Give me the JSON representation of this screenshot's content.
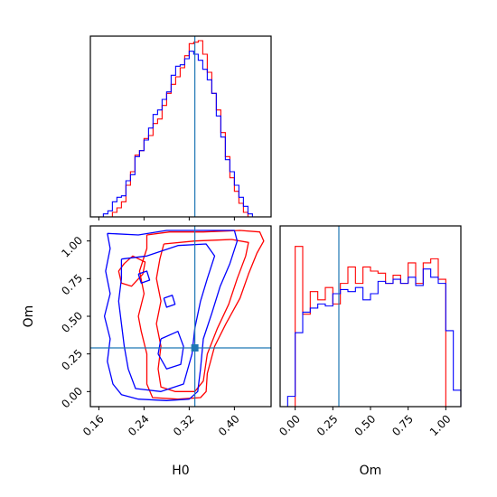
{
  "chart_data": [
    {
      "type": "histogram",
      "panel": "marginal H0",
      "xlim": [
        0.145,
        0.465
      ],
      "ticks": [
        0.16,
        0.24,
        0.32,
        0.4
      ],
      "truth_line": 0.33,
      "bin_edges": [
        0.16,
        0.168,
        0.176,
        0.184,
        0.192,
        0.2,
        0.208,
        0.216,
        0.224,
        0.232,
        0.24,
        0.248,
        0.256,
        0.264,
        0.272,
        0.28,
        0.288,
        0.296,
        0.304,
        0.312,
        0.32,
        0.328,
        0.336,
        0.344,
        0.352,
        0.36,
        0.368,
        0.376,
        0.384,
        0.392,
        0.4,
        0.408,
        0.416,
        0.424,
        0.432,
        0.44
      ],
      "series": [
        {
          "color": "#ff0000",
          "values": [
            0,
            0,
            0,
            3,
            6,
            10,
            21,
            30,
            41,
            44,
            52,
            54,
            62,
            65,
            74,
            82,
            88,
            93,
            99,
            107,
            115,
            116,
            117,
            108,
            96,
            82,
            71,
            56,
            40,
            26,
            17,
            9,
            3,
            0,
            0
          ]
        },
        {
          "color": "#0000ff",
          "values": [
            0,
            2,
            4,
            10,
            13,
            14,
            24,
            28,
            40,
            44,
            51,
            59,
            68,
            71,
            78,
            83,
            94,
            100,
            101,
            105,
            110,
            108,
            104,
            98,
            91,
            82,
            67,
            53,
            38,
            30,
            21,
            13,
            7,
            2,
            0
          ]
        }
      ]
    },
    {
      "type": "contour",
      "panel": "H0 vs Om",
      "xlabel": "H0",
      "ylabel": "Om",
      "xlim": [
        0.145,
        0.465
      ],
      "ylim": [
        -0.1,
        1.1
      ],
      "xticks": [
        0.16,
        0.24,
        0.32,
        0.4
      ],
      "xtick_labels": [
        "0.16",
        "0.24",
        "0.32",
        "0.40"
      ],
      "yticks": [
        0.0,
        0.25,
        0.5,
        0.75,
        1.0
      ],
      "ytick_labels": [
        "0.00",
        "0.25",
        "0.50",
        "0.75",
        "1.00"
      ],
      "truth": {
        "H0": 0.33,
        "Om": 0.29
      },
      "series": [
        {
          "color": "#ff0000",
          "contours": [
            [
              [
                0.245,
                1.04
              ],
              [
                0.285,
                1.06
              ],
              [
                0.345,
                1.06
              ],
              [
                0.41,
                1.07
              ],
              [
                0.445,
                1.06
              ],
              [
                0.452,
                1.0
              ],
              [
                0.44,
                0.92
              ],
              [
                0.425,
                0.78
              ],
              [
                0.41,
                0.62
              ],
              [
                0.385,
                0.45
              ],
              [
                0.365,
                0.3
              ],
              [
                0.352,
                0.12
              ],
              [
                0.35,
                0.0
              ],
              [
                0.34,
                -0.04
              ],
              [
                0.3,
                -0.05
              ],
              [
                0.255,
                -0.04
              ],
              [
                0.245,
                0.05
              ],
              [
                0.245,
                0.25
              ],
              [
                0.235,
                0.4
              ],
              [
                0.23,
                0.5
              ],
              [
                0.24,
                0.65
              ],
              [
                0.232,
                0.8
              ],
              [
                0.245,
                0.95
              ],
              [
                0.245,
                1.04
              ]
            ],
            [
              [
                0.275,
                0.98
              ],
              [
                0.33,
                1.0
              ],
              [
                0.395,
                1.01
              ],
              [
                0.425,
                0.99
              ],
              [
                0.42,
                0.9
              ],
              [
                0.405,
                0.75
              ],
              [
                0.39,
                0.58
              ],
              [
                0.37,
                0.42
              ],
              [
                0.352,
                0.25
              ],
              [
                0.345,
                0.07
              ],
              [
                0.33,
                0.0
              ],
              [
                0.295,
                0.0
              ],
              [
                0.27,
                0.03
              ],
              [
                0.265,
                0.15
              ],
              [
                0.27,
                0.3
              ],
              [
                0.262,
                0.45
              ],
              [
                0.27,
                0.6
              ],
              [
                0.262,
                0.75
              ],
              [
                0.268,
                0.88
              ],
              [
                0.275,
                0.98
              ]
            ],
            [
              [
                0.205,
                0.85
              ],
              [
                0.22,
                0.9
              ],
              [
                0.242,
                0.86
              ],
              [
                0.238,
                0.78
              ],
              [
                0.218,
                0.7
              ],
              [
                0.2,
                0.72
              ],
              [
                0.195,
                0.8
              ],
              [
                0.205,
                0.85
              ]
            ]
          ]
        },
        {
          "color": "#0000ff",
          "contours": [
            [
              [
                0.175,
                1.05
              ],
              [
                0.23,
                1.04
              ],
              [
                0.28,
                1.07
              ],
              [
                0.35,
                1.07
              ],
              [
                0.4,
                1.07
              ],
              [
                0.405,
                1.0
              ],
              [
                0.392,
                0.85
              ],
              [
                0.375,
                0.7
              ],
              [
                0.36,
                0.52
              ],
              [
                0.345,
                0.35
              ],
              [
                0.34,
                0.15
              ],
              [
                0.335,
                0.0
              ],
              [
                0.32,
                -0.05
              ],
              [
                0.28,
                -0.06
              ],
              [
                0.23,
                -0.05
              ],
              [
                0.2,
                -0.02
              ],
              [
                0.185,
                0.05
              ],
              [
                0.175,
                0.2
              ],
              [
                0.18,
                0.35
              ],
              [
                0.17,
                0.5
              ],
              [
                0.18,
                0.65
              ],
              [
                0.172,
                0.8
              ],
              [
                0.18,
                0.95
              ],
              [
                0.175,
                1.05
              ]
            ],
            [
              [
                0.2,
                0.88
              ],
              [
                0.245,
                0.9
              ],
              [
                0.3,
                0.97
              ],
              [
                0.35,
                0.98
              ],
              [
                0.365,
                0.9
              ],
              [
                0.352,
                0.75
              ],
              [
                0.34,
                0.6
              ],
              [
                0.33,
                0.42
              ],
              [
                0.325,
                0.25
              ],
              [
                0.31,
                0.05
              ],
              [
                0.27,
                0.0
              ],
              [
                0.225,
                0.02
              ],
              [
                0.212,
                0.15
              ],
              [
                0.205,
                0.3
              ],
              [
                0.2,
                0.45
              ],
              [
                0.195,
                0.6
              ],
              [
                0.2,
                0.75
              ],
              [
                0.2,
                0.88
              ]
            ],
            [
              [
                0.27,
                0.35
              ],
              [
                0.3,
                0.4
              ],
              [
                0.31,
                0.3
              ],
              [
                0.305,
                0.18
              ],
              [
                0.28,
                0.15
              ],
              [
                0.265,
                0.25
              ],
              [
                0.27,
                0.35
              ]
            ],
            [
              [
                0.23,
                0.78
              ],
              [
                0.245,
                0.8
              ],
              [
                0.25,
                0.74
              ],
              [
                0.235,
                0.72
              ],
              [
                0.23,
                0.78
              ]
            ],
            [
              [
                0.275,
                0.62
              ],
              [
                0.29,
                0.64
              ],
              [
                0.295,
                0.58
              ],
              [
                0.28,
                0.56
              ],
              [
                0.275,
                0.62
              ]
            ]
          ]
        }
      ]
    },
    {
      "type": "histogram",
      "panel": "marginal Om",
      "xlabel": "Om",
      "xlim": [
        -0.1,
        1.1
      ],
      "xticks": [
        0.0,
        0.25,
        0.5,
        0.75,
        1.0
      ],
      "xtick_labels": [
        "0.00",
        "0.25",
        "0.50",
        "0.75",
        "1.00"
      ],
      "truth_line": 0.29,
      "bin_edges": [
        -0.1,
        -0.05,
        0.0,
        0.05,
        0.1,
        0.15,
        0.2,
        0.25,
        0.3,
        0.35,
        0.4,
        0.45,
        0.5,
        0.55,
        0.6,
        0.65,
        0.7,
        0.75,
        0.8,
        0.85,
        0.9,
        0.95,
        1.0,
        1.05,
        1.1
      ],
      "series": [
        {
          "color": "#ff0000",
          "values": [
            0,
            0,
            78,
            45,
            56,
            52,
            58,
            50,
            60,
            68,
            60,
            68,
            66,
            65,
            60,
            64,
            60,
            70,
            60,
            70,
            72,
            62,
            0,
            0
          ]
        },
        {
          "color": "#0000ff",
          "values": [
            0,
            5,
            36,
            46,
            48,
            50,
            49,
            55,
            57,
            56,
            58,
            52,
            55,
            61,
            60,
            62,
            60,
            63,
            59,
            67,
            63,
            60,
            37,
            8
          ]
        }
      ]
    }
  ]
}
